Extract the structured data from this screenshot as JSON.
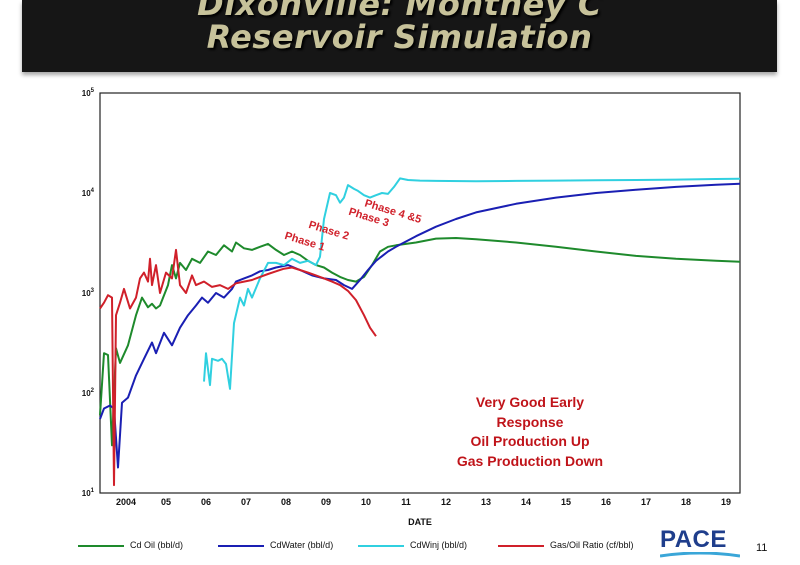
{
  "slide": {
    "title_line1": "Dixonville: Montney C",
    "title_line2": "Reservoir Simulation",
    "page_number": "11",
    "logo_text": "PACE",
    "colors": {
      "banner": "#161616",
      "title": "#c7c29a",
      "annotation": "#c0141a"
    }
  },
  "chart_data": {
    "type": "line",
    "title": "",
    "xlabel": "DATE",
    "ylabel": "",
    "xlim": [
      2003.6,
      2019.6
    ],
    "ylim": [
      10,
      100000
    ],
    "yscale": "log",
    "grid": true,
    "x_ticks": [
      {
        "x": 2004.0,
        "label": "2004"
      },
      {
        "x": 2005.0,
        "label": "05"
      },
      {
        "x": 2006.0,
        "label": "06"
      },
      {
        "x": 2007.0,
        "label": "07"
      },
      {
        "x": 2008.0,
        "label": "08"
      },
      {
        "x": 2009.0,
        "label": "09"
      },
      {
        "x": 2010.0,
        "label": "10"
      },
      {
        "x": 2011.0,
        "label": "11"
      },
      {
        "x": 2012.0,
        "label": "12"
      },
      {
        "x": 2013.0,
        "label": "13"
      },
      {
        "x": 2014.0,
        "label": "14"
      },
      {
        "x": 2015.0,
        "label": "15"
      },
      {
        "x": 2016.0,
        "label": "16"
      },
      {
        "x": 2017.0,
        "label": "17"
      },
      {
        "x": 2018.0,
        "label": "18"
      },
      {
        "x": 2019.0,
        "label": "19"
      }
    ],
    "y_ticks": [
      {
        "exp": 1,
        "label": "10",
        "sup": "1"
      },
      {
        "exp": 2,
        "label": "10",
        "sup": "2"
      },
      {
        "exp": 3,
        "label": "10",
        "sup": "3"
      },
      {
        "exp": 4,
        "label": "10",
        "sup": "4"
      },
      {
        "exp": 5,
        "label": "10",
        "sup": "5"
      }
    ],
    "legend_position": "bottom",
    "series": [
      {
        "name": "Cd Oil (bbl/d)",
        "color": "#1e8a2c",
        "points": [
          [
            2003.6,
            60
          ],
          [
            2003.7,
            250
          ],
          [
            2003.8,
            240
          ],
          [
            2003.9,
            30
          ],
          [
            2004.0,
            280
          ],
          [
            2004.1,
            200
          ],
          [
            2004.3,
            300
          ],
          [
            2004.5,
            600
          ],
          [
            2004.65,
            900
          ],
          [
            2004.8,
            720
          ],
          [
            2004.9,
            780
          ],
          [
            2005.0,
            700
          ],
          [
            2005.1,
            750
          ],
          [
            2005.3,
            1200
          ],
          [
            2005.4,
            1900
          ],
          [
            2005.5,
            1400
          ],
          [
            2005.6,
            2000
          ],
          [
            2005.75,
            1700
          ],
          [
            2005.9,
            2200
          ],
          [
            2006.1,
            2000
          ],
          [
            2006.3,
            2600
          ],
          [
            2006.5,
            2400
          ],
          [
            2006.7,
            3000
          ],
          [
            2006.9,
            2600
          ],
          [
            2007.0,
            3200
          ],
          [
            2007.2,
            2800
          ],
          [
            2007.4,
            2700
          ],
          [
            2007.6,
            2900
          ],
          [
            2007.8,
            3100
          ],
          [
            2008.0,
            2700
          ],
          [
            2008.2,
            2400
          ],
          [
            2008.4,
            2600
          ],
          [
            2008.6,
            2400
          ],
          [
            2008.8,
            2100
          ],
          [
            2009.0,
            1900
          ],
          [
            2009.2,
            1800
          ],
          [
            2009.4,
            1600
          ],
          [
            2009.6,
            1450
          ],
          [
            2009.8,
            1350
          ],
          [
            2010.0,
            1300
          ],
          [
            2010.2,
            1450
          ],
          [
            2010.4,
            1900
          ],
          [
            2010.6,
            2600
          ],
          [
            2010.8,
            2900
          ],
          [
            2011.0,
            3000
          ],
          [
            2011.5,
            3200
          ],
          [
            2012.0,
            3500
          ],
          [
            2012.5,
            3550
          ],
          [
            2013.0,
            3450
          ],
          [
            2014.0,
            3200
          ],
          [
            2015.0,
            2900
          ],
          [
            2016.0,
            2600
          ],
          [
            2017.0,
            2350
          ],
          [
            2018.0,
            2200
          ],
          [
            2019.0,
            2100
          ],
          [
            2019.6,
            2050
          ]
        ]
      },
      {
        "name": "CdWater (bbl/d)",
        "color": "#1a1fb3",
        "points": [
          [
            2003.6,
            55
          ],
          [
            2003.7,
            70
          ],
          [
            2003.85,
            75
          ],
          [
            2003.95,
            70
          ],
          [
            2004.05,
            18
          ],
          [
            2004.15,
            80
          ],
          [
            2004.3,
            90
          ],
          [
            2004.5,
            150
          ],
          [
            2004.7,
            220
          ],
          [
            2004.9,
            320
          ],
          [
            2005.0,
            250
          ],
          [
            2005.2,
            400
          ],
          [
            2005.4,
            300
          ],
          [
            2005.6,
            450
          ],
          [
            2005.8,
            600
          ],
          [
            2006.0,
            750
          ],
          [
            2006.15,
            900
          ],
          [
            2006.3,
            800
          ],
          [
            2006.5,
            1000
          ],
          [
            2006.7,
            900
          ],
          [
            2006.9,
            1100
          ],
          [
            2007.0,
            1300
          ],
          [
            2007.2,
            1400
          ],
          [
            2007.4,
            1500
          ],
          [
            2007.6,
            1650
          ],
          [
            2007.8,
            1700
          ],
          [
            2008.0,
            1800
          ],
          [
            2008.3,
            1900
          ],
          [
            2008.6,
            1700
          ],
          [
            2008.9,
            1500
          ],
          [
            2009.2,
            1400
          ],
          [
            2009.5,
            1350
          ],
          [
            2009.7,
            1200
          ],
          [
            2009.9,
            1100
          ],
          [
            2010.1,
            1350
          ],
          [
            2010.3,
            1700
          ],
          [
            2010.5,
            2100
          ],
          [
            2010.8,
            2600
          ],
          [
            2011.0,
            2900
          ],
          [
            2011.5,
            3700
          ],
          [
            2012.0,
            4600
          ],
          [
            2012.5,
            5500
          ],
          [
            2013.0,
            6400
          ],
          [
            2014.0,
            7800
          ],
          [
            2015.0,
            9000
          ],
          [
            2016.0,
            10000
          ],
          [
            2017.0,
            10800
          ],
          [
            2018.0,
            11500
          ],
          [
            2019.0,
            12100
          ],
          [
            2019.6,
            12400
          ]
        ]
      },
      {
        "name": "CdWinj (bbl/d)",
        "color": "#30d0e0",
        "points": [
          [
            2006.2,
            130
          ],
          [
            2006.25,
            250
          ],
          [
            2006.35,
            120
          ],
          [
            2006.4,
            220
          ],
          [
            2006.55,
            210
          ],
          [
            2006.65,
            220
          ],
          [
            2006.75,
            195
          ],
          [
            2006.85,
            110
          ],
          [
            2006.95,
            500
          ],
          [
            2007.1,
            900
          ],
          [
            2007.2,
            750
          ],
          [
            2007.3,
            1100
          ],
          [
            2007.4,
            900
          ],
          [
            2007.6,
            1400
          ],
          [
            2007.8,
            2000
          ],
          [
            2008.0,
            2000
          ],
          [
            2008.2,
            1900
          ],
          [
            2008.4,
            2200
          ],
          [
            2008.6,
            2000
          ],
          [
            2008.8,
            2100
          ],
          [
            2009.0,
            1900
          ],
          [
            2009.1,
            2300
          ],
          [
            2009.2,
            5500
          ],
          [
            2009.35,
            10000
          ],
          [
            2009.5,
            9500
          ],
          [
            2009.6,
            8000
          ],
          [
            2009.7,
            9000
          ],
          [
            2009.8,
            12000
          ],
          [
            2009.95,
            11000
          ],
          [
            2010.05,
            10500
          ],
          [
            2010.2,
            9500
          ],
          [
            2010.35,
            9000
          ],
          [
            2010.5,
            9500
          ],
          [
            2010.65,
            10000
          ],
          [
            2010.8,
            9800
          ],
          [
            2010.95,
            11500
          ],
          [
            2011.1,
            14000
          ],
          [
            2011.3,
            13500
          ],
          [
            2011.6,
            13300
          ],
          [
            2012.0,
            13200
          ],
          [
            2013.0,
            13100
          ],
          [
            2014.0,
            13200
          ],
          [
            2015.0,
            13300
          ],
          [
            2016.0,
            13400
          ],
          [
            2017.0,
            13500
          ],
          [
            2018.0,
            13600
          ],
          [
            2019.0,
            13800
          ],
          [
            2019.6,
            13900
          ]
        ]
      },
      {
        "name": "Gas/Oil Ratio (cf/bbl)",
        "color": "#d0202a",
        "points": [
          [
            2003.6,
            700
          ],
          [
            2003.7,
            800
          ],
          [
            2003.8,
            950
          ],
          [
            2003.9,
            900
          ],
          [
            2003.95,
            12
          ],
          [
            2004.0,
            600
          ],
          [
            2004.1,
            800
          ],
          [
            2004.2,
            1100
          ],
          [
            2004.35,
            700
          ],
          [
            2004.5,
            900
          ],
          [
            2004.6,
            1400
          ],
          [
            2004.7,
            1600
          ],
          [
            2004.8,
            1300
          ],
          [
            2004.85,
            2200
          ],
          [
            2004.9,
            1200
          ],
          [
            2005.0,
            1900
          ],
          [
            2005.1,
            1000
          ],
          [
            2005.25,
            1600
          ],
          [
            2005.4,
            1400
          ],
          [
            2005.5,
            2700
          ],
          [
            2005.6,
            1200
          ],
          [
            2005.75,
            1000
          ],
          [
            2005.9,
            1500
          ],
          [
            2006.0,
            1200
          ],
          [
            2006.2,
            1300
          ],
          [
            2006.4,
            1150
          ],
          [
            2006.6,
            1200
          ],
          [
            2006.8,
            1100
          ],
          [
            2007.0,
            1250
          ],
          [
            2007.2,
            1300
          ],
          [
            2007.4,
            1350
          ],
          [
            2007.6,
            1450
          ],
          [
            2007.8,
            1550
          ],
          [
            2008.0,
            1650
          ],
          [
            2008.2,
            1750
          ],
          [
            2008.4,
            1800
          ],
          [
            2008.6,
            1700
          ],
          [
            2008.8,
            1600
          ],
          [
            2009.0,
            1500
          ],
          [
            2009.2,
            1400
          ],
          [
            2009.4,
            1300
          ],
          [
            2009.6,
            1200
          ],
          [
            2009.8,
            1050
          ],
          [
            2010.0,
            850
          ],
          [
            2010.2,
            600
          ],
          [
            2010.35,
            450
          ],
          [
            2010.5,
            370
          ]
        ]
      }
    ],
    "annotations": {
      "phases": [
        {
          "text": "Phase 1",
          "x": 2008.2,
          "y": 3500,
          "color": "#d0202a"
        },
        {
          "text": "Phase 2",
          "x": 2008.8,
          "y": 4500,
          "color": "#d0202a"
        },
        {
          "text": "Phase 3",
          "x": 2009.8,
          "y": 6100,
          "color": "#d0202a"
        },
        {
          "text": "Phase 4 &5",
          "x": 2010.2,
          "y": 7400,
          "color": "#d0202a"
        }
      ],
      "note_lines": [
        "Very Good Early",
        "Response",
        "Oil Production Up",
        "Gas Production Down"
      ]
    }
  }
}
